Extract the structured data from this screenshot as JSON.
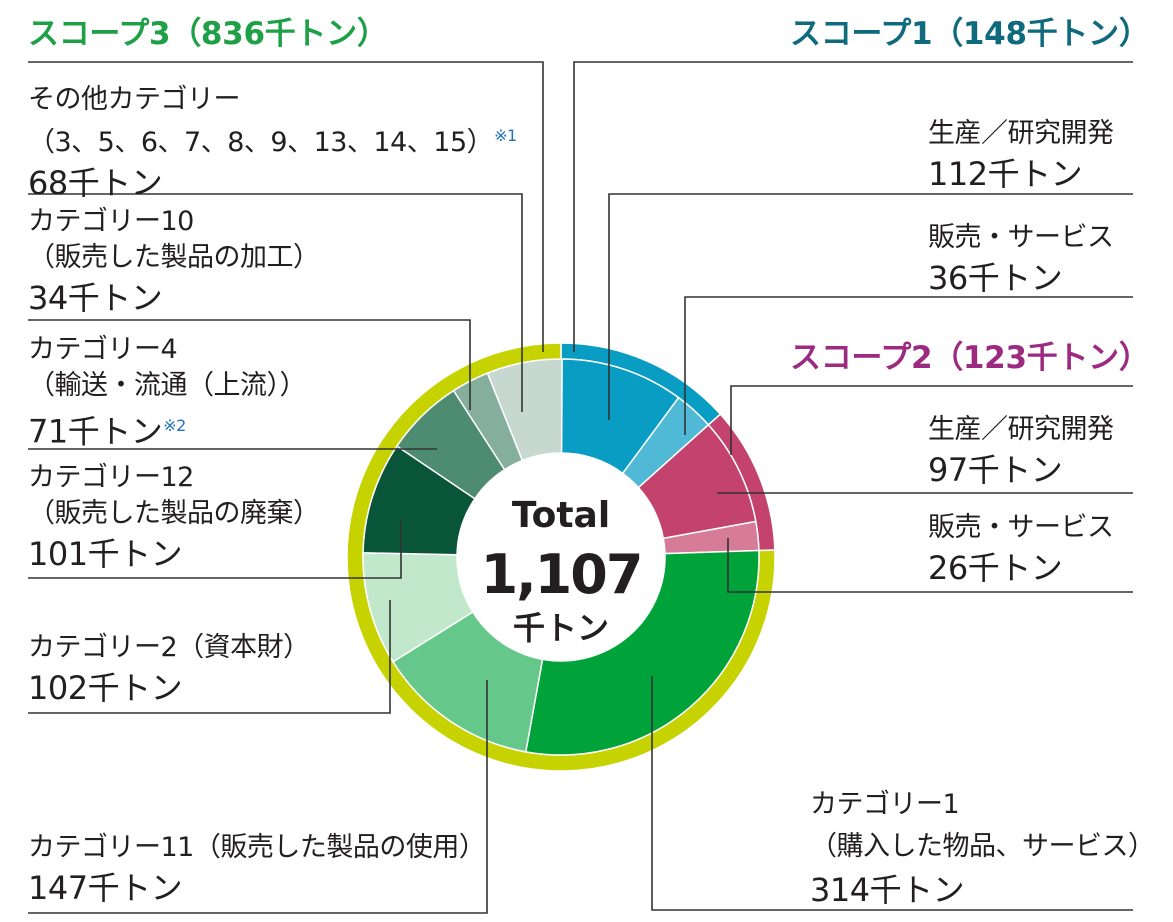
{
  "colors": {
    "scope1": "#0e6a7c",
    "scope2": "#9c2a80",
    "scope3": "#1ea046",
    "outer_ring": "#c6d300",
    "note": "#1f73b7"
  },
  "center": {
    "title": "Total",
    "value": "1,107",
    "unit": "千トン"
  },
  "scopes": {
    "scope3_title": "スコープ3（836千トン）",
    "scope1_title": "スコープ1（148千トン）",
    "scope2_title": "スコープ2（123千トン）"
  },
  "labels": {
    "other": {
      "line1": "その他カテゴリー",
      "line2": "（3、5、6、7、8、9、13、14、15）",
      "note": "※1",
      "value": "68千トン"
    },
    "cat10": {
      "line1": "カテゴリー10",
      "line2": "（販売した製品の加工）",
      "value": "34千トン"
    },
    "cat4": {
      "line1": "カテゴリー4",
      "line2": "（輸送・流通（上流））",
      "value": "71千トン",
      "note": "※2"
    },
    "cat12": {
      "line1": "カテゴリー12",
      "line2": "（販売した製品の廃棄）",
      "value": "101千トン"
    },
    "cat2": {
      "line1": "カテゴリー2（資本財）",
      "value": "102千トン"
    },
    "cat11": {
      "line1": "カテゴリー11（販売した製品の使用）",
      "value": "147千トン"
    },
    "s1_prod": {
      "line1": "生産／研究開発",
      "value": "112千トン"
    },
    "s1_sales": {
      "line1": "販売・サービス",
      "value": "36千トン"
    },
    "s2_prod": {
      "line1": "生産／研究開発",
      "value": "97千トン"
    },
    "s2_sales": {
      "line1": "販売・サービス",
      "value": "26千トン"
    },
    "cat1": {
      "line1": "カテゴリー1",
      "line2": "（購入した物品、サービス）",
      "value": "314千トン"
    }
  },
  "chart_data": {
    "type": "pie",
    "title": "",
    "total": 1107,
    "unit": "千トン",
    "inner_ring": [
      {
        "group": "スコープ1",
        "name": "生産／研究開発",
        "value": 112,
        "color": "#0a9dc4"
      },
      {
        "group": "スコープ1",
        "name": "販売・サービス",
        "value": 36,
        "color": "#4fb9d6"
      },
      {
        "group": "スコープ2",
        "name": "生産／研究開発",
        "value": 97,
        "color": "#c3436e"
      },
      {
        "group": "スコープ2",
        "name": "販売・サービス",
        "value": 26,
        "color": "#d77c98"
      },
      {
        "group": "スコープ3",
        "name": "カテゴリー1（購入した物品、サービス）",
        "value": 314,
        "color": "#00a23a"
      },
      {
        "group": "スコープ3",
        "name": "カテゴリー11（販売した製品の使用）",
        "value": 147,
        "color": "#66c78a"
      },
      {
        "group": "スコープ3",
        "name": "カテゴリー2（資本財）",
        "value": 102,
        "color": "#c2e8cc"
      },
      {
        "group": "スコープ3",
        "name": "カテゴリー12（販売した製品の廃棄）",
        "value": 101,
        "color": "#08553a"
      },
      {
        "group": "スコープ3",
        "name": "カテゴリー4（輸送・流通（上流））",
        "value": 71,
        "color": "#4e8c71"
      },
      {
        "group": "スコープ3",
        "name": "カテゴリー10（販売した製品の加工）",
        "value": 34,
        "color": "#86ae9c"
      },
      {
        "group": "スコープ3",
        "name": "その他カテゴリー",
        "value": 68,
        "color": "#c6d8d0"
      }
    ],
    "outer_ring": [
      {
        "name": "スコープ1",
        "value": 148,
        "color": "#0a9dc4"
      },
      {
        "name": "スコープ2",
        "value": 123,
        "color": "#c3436e"
      },
      {
        "name": "スコープ3",
        "value": 836,
        "color": "#c6d300"
      }
    ]
  }
}
